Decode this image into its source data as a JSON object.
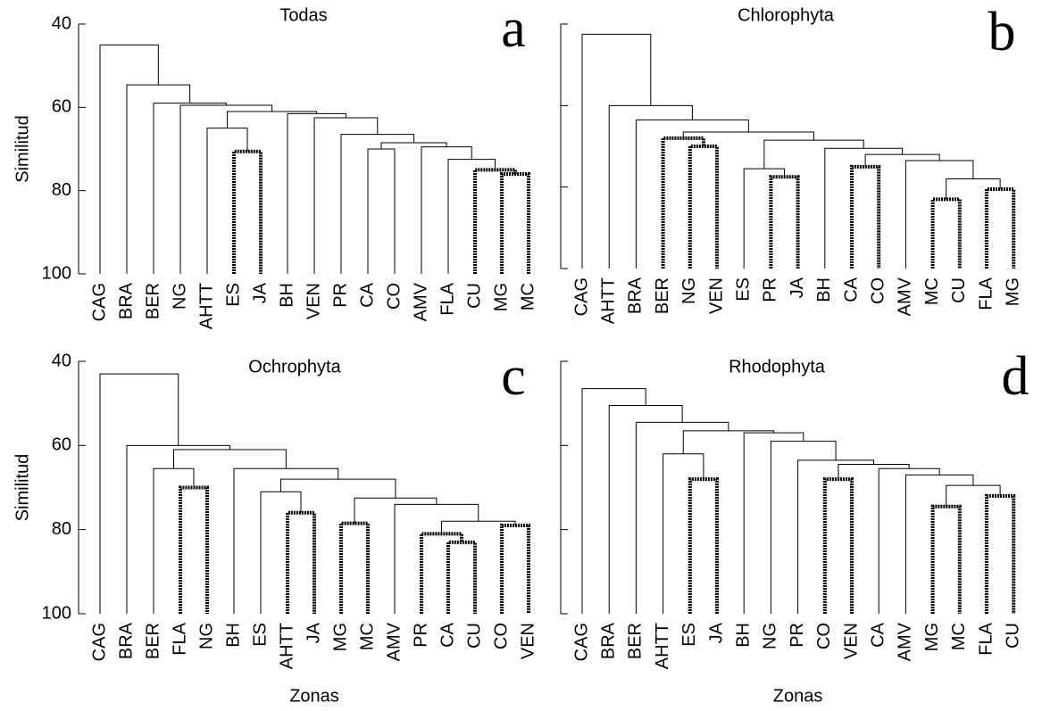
{
  "chart_data": [
    {
      "type": "dendrogram",
      "title": "Todas",
      "label": "a",
      "ylabel": "Similitud",
      "ylim": [
        40,
        100
      ],
      "yticks": [
        40,
        60,
        80,
        100
      ],
      "ytick_labels": true,
      "tree": {
        "value": 45,
        "children": [
          "CAG",
          {
            "value": 54.6,
            "children": [
              "BRA",
              {
                "value": 59,
                "children": [
                  "BER",
                  {
                    "value": 59.5,
                    "children": [
                      "NG",
                      {
                        "value": 61,
                        "children": [
                          {
                            "value": 65,
                            "children": [
                              "AHTT",
                              {
                                "value": 70.6,
                                "bold": true,
                                "children": [
                                  "ES",
                                  "JA"
                                ]
                              }
                            ]
                          },
                          {
                            "value": 61.5,
                            "children": [
                              "BH",
                              {
                                "value": 62.5,
                                "children": [
                                  "VEN",
                                  {
                                    "value": 66.5,
                                    "children": [
                                      "PR",
                                      {
                                        "value": 68.5,
                                        "children": [
                                          {
                                            "value": 70,
                                            "children": [
                                              "CA",
                                              "CO"
                                            ]
                                          },
                                          {
                                            "value": 69.5,
                                            "children": [
                                              "AMV",
                                              {
                                                "value": 72.5,
                                                "children": [
                                                  "FLA",
                                                  {
                                                    "value": 75,
                                                    "bold": true,
                                                    "children": [
                                                      "CU",
                                                      {
                                                        "value": 76,
                                                        "bold": true,
                                                        "children": [
                                                          "MG",
                                                          "MC"
                                                        ]
                                                      }
                                                    ]
                                                  }
                                                ]
                                              }
                                            ]
                                          }
                                        ]
                                      }
                                    ]
                                  }
                                ]
                              }
                            ]
                          }
                        ]
                      }
                    ]
                  }
                ]
              }
            ]
          }
        ]
      }
    },
    {
      "type": "dendrogram",
      "title": "Chlorophyta",
      "label": "b",
      "ylim": [
        40,
        100
      ],
      "yticks": [
        40,
        60,
        80,
        100
      ],
      "ytick_labels": false,
      "tree": {
        "value": 42.5,
        "children": [
          "CAG",
          {
            "value": 60,
            "children": [
              "AHTT",
              {
                "value": 63.5,
                "children": [
                  "BRA",
                  {
                    "value": 66.5,
                    "children": [
                      {
                        "value": 68,
                        "bold": true,
                        "children": [
                          "BER",
                          {
                            "value": 70,
                            "bold": true,
                            "children": [
                              "NG",
                              "VEN"
                            ]
                          }
                        ]
                      },
                      {
                        "value": 68.5,
                        "children": [
                          {
                            "value": 75.5,
                            "children": [
                              "ES",
                              {
                                "value": 77.5,
                                "bold": true,
                                "children": [
                                  "PR",
                                  "JA"
                                ]
                              }
                            ]
                          },
                          {
                            "value": 70.5,
                            "children": [
                              "BH",
                              {
                                "value": 72,
                                "children": [
                                  {
                                    "value": 75,
                                    "bold": true,
                                    "children": [
                                      "CA",
                                      "CO"
                                    ]
                                  },
                                  {
                                    "value": 73.5,
                                    "children": [
                                      "AMV",
                                      {
                                        "value": 78,
                                        "children": [
                                          {
                                            "value": 83,
                                            "bold": true,
                                            "children": [
                                              "MC",
                                              "CU"
                                            ]
                                          },
                                          {
                                            "value": 80.5,
                                            "bold": true,
                                            "children": [
                                              "FLA",
                                              "MG"
                                            ]
                                          }
                                        ]
                                      }
                                    ]
                                  }
                                ]
                              }
                            ]
                          }
                        ]
                      }
                    ]
                  }
                ]
              }
            ]
          }
        ]
      }
    },
    {
      "type": "dendrogram",
      "title": "Ochrophyta",
      "label": "c",
      "ylabel": "Similitud",
      "xlabel": "Zonas",
      "ylim": [
        40,
        100
      ],
      "yticks": [
        40,
        60,
        80,
        100
      ],
      "ytick_labels": true,
      "tree": {
        "value": 43,
        "children": [
          "CAG",
          {
            "value": 60,
            "children": [
              "BRA",
              {
                "value": 61,
                "children": [
                  {
                    "value": 65.5,
                    "children": [
                      "BER",
                      {
                        "value": 70,
                        "bold": true,
                        "children": [
                          "FLA",
                          "NG"
                        ]
                      }
                    ]
                  },
                  {
                    "value": 65.5,
                    "children": [
                      "BH",
                      {
                        "value": 68,
                        "children": [
                          {
                            "value": 71,
                            "children": [
                              "ES",
                              {
                                "value": 76,
                                "bold": true,
                                "children": [
                                  "AHTT",
                                  "JA"
                                ]
                              }
                            ]
                          },
                          {
                            "value": 72.5,
                            "children": [
                              {
                                "value": 78.5,
                                "bold": true,
                                "children": [
                                  "MG",
                                  "MC"
                                ]
                              },
                              {
                                "value": 74,
                                "children": [
                                  "AMV",
                                  {
                                    "value": 78,
                                    "children": [
                                      {
                                        "value": 81,
                                        "bold": true,
                                        "children": [
                                          "PR",
                                          {
                                            "value": 83,
                                            "bold": true,
                                            "children": [
                                              "CA",
                                              "CU"
                                            ]
                                          }
                                        ]
                                      },
                                      {
                                        "value": 79,
                                        "bold": true,
                                        "children": [
                                          "CO",
                                          "VEN"
                                        ]
                                      }
                                    ]
                                  }
                                ]
                              }
                            ]
                          }
                        ]
                      }
                    ]
                  }
                ]
              }
            ]
          }
        ]
      }
    },
    {
      "type": "dendrogram",
      "title": "Rhodophyta",
      "label": "d",
      "xlabel": "Zonas",
      "ylim": [
        40,
        100
      ],
      "yticks": [
        40,
        60,
        80,
        100
      ],
      "ytick_labels": false,
      "tree": {
        "value": 46.5,
        "children": [
          "CAG",
          {
            "value": 50.5,
            "children": [
              "BRA",
              {
                "value": 54.5,
                "children": [
                  "BER",
                  {
                    "value": 56.5,
                    "children": [
                      {
                        "value": 62,
                        "children": [
                          "AHTT",
                          {
                            "value": 68,
                            "bold": true,
                            "children": [
                              "ES",
                              "JA"
                            ]
                          }
                        ]
                      },
                      {
                        "value": 57,
                        "children": [
                          "BH",
                          {
                            "value": 59,
                            "children": [
                              "NG",
                              {
                                "value": 63.5,
                                "children": [
                                  "PR",
                                  {
                                    "value": 64.5,
                                    "children": [
                                      {
                                        "value": 68,
                                        "bold": true,
                                        "children": [
                                          "CO",
                                          "VEN"
                                        ]
                                      },
                                      {
                                        "value": 65.5,
                                        "children": [
                                          "CA",
                                          {
                                            "value": 67,
                                            "children": [
                                              "AMV",
                                              {
                                                "value": 69.5,
                                                "children": [
                                                  {
                                                    "value": 74.5,
                                                    "bold": true,
                                                    "children": [
                                                      "MG",
                                                      "MC"
                                                    ]
                                                  },
                                                  {
                                                    "value": 72,
                                                    "bold": true,
                                                    "children": [
                                                      "FLA",
                                                      "CU"
                                                    ]
                                                  }
                                                ]
                                              }
                                            ]
                                          }
                                        ]
                                      }
                                    ]
                                  }
                                ]
                              }
                            ]
                          }
                        ]
                      }
                    ]
                  }
                ]
              }
            ]
          }
        ]
      }
    }
  ]
}
